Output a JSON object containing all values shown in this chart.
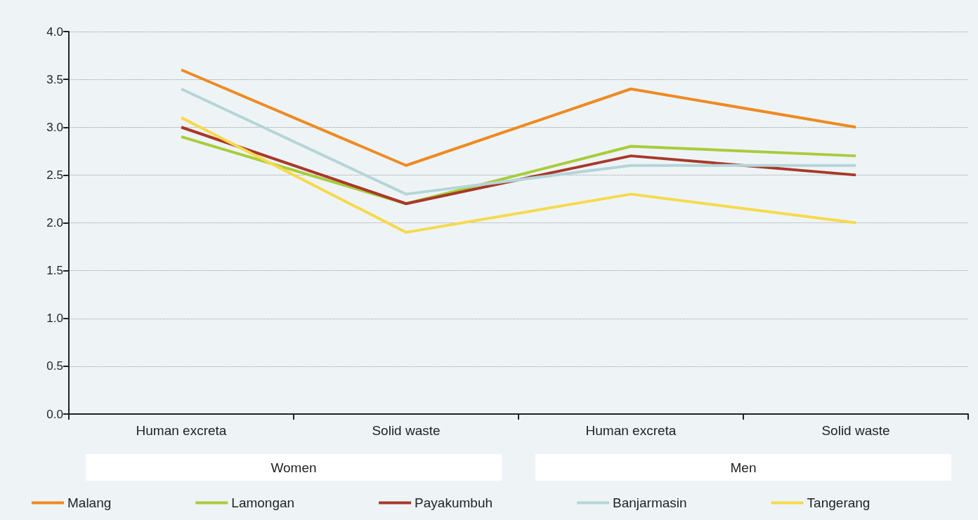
{
  "chart_data": {
    "type": "line",
    "categories": [
      "Human excreta",
      "Solid waste",
      "Human excreta",
      "Solid waste"
    ],
    "annotations": [
      "Women",
      "Men"
    ],
    "series": [
      {
        "name": "Malang",
        "color": "#ee8a22",
        "values": [
          3.6,
          2.6,
          3.4,
          3.0
        ]
      },
      {
        "name": "Lamongan",
        "color": "#a8cc3a",
        "values": [
          2.9,
          2.2,
          2.8,
          2.7
        ]
      },
      {
        "name": "Payakumbuh",
        "color": "#a8382a",
        "values": [
          3.0,
          2.2,
          2.7,
          2.5
        ]
      },
      {
        "name": "Banjarmasin",
        "color": "#b5d5d8",
        "values": [
          3.4,
          2.3,
          2.6,
          2.6
        ]
      },
      {
        "name": "Tangerang",
        "color": "#f7d94c",
        "values": [
          3.1,
          1.9,
          2.3,
          2.0
        ]
      }
    ],
    "ylim": [
      0,
      4
    ],
    "yticks": [
      {
        "value": 0,
        "label": "0.0"
      },
      0.5,
      {
        "value": 1,
        "label": "1.0"
      },
      1.5,
      {
        "value": 2,
        "label": "2.0"
      },
      2.5,
      {
        "value": 3,
        "label": "3.0"
      },
      3.5,
      {
        "value": 4,
        "label": "4.0"
      }
    ],
    "grid": "y",
    "legend": "bottom",
    "marker": "none",
    "line_style": "solid"
  }
}
